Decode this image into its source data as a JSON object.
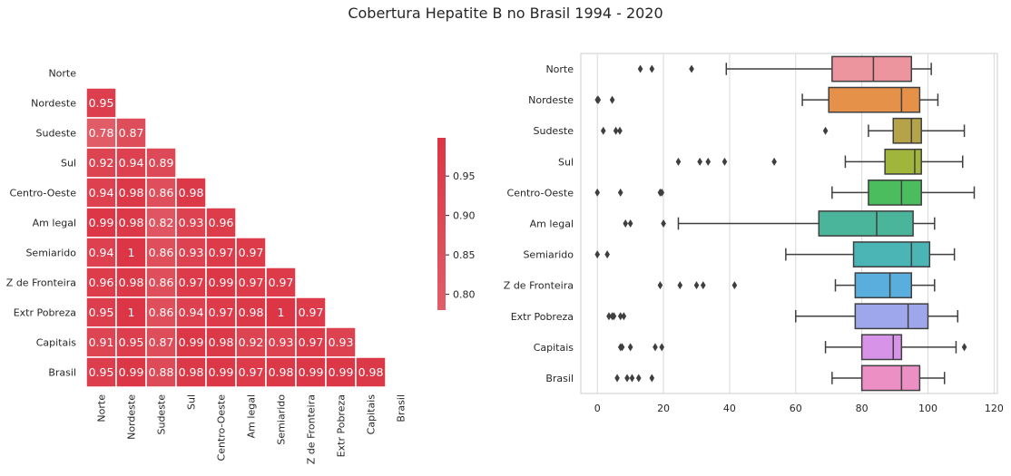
{
  "figure": {
    "title": "Cobertura Hepatite B no Brasil 1994 - 2020"
  },
  "chart_data": [
    {
      "type": "heatmap",
      "subtype": "lower-triangle correlation matrix",
      "labels": [
        "Norte",
        "Nordeste",
        "Sudeste",
        "Sul",
        "Centro-Oeste",
        "Am legal",
        "Semiarido",
        "Z de Fronteira",
        "Extr Pobreza",
        "Capitais",
        "Brasil"
      ],
      "matrix": [
        [],
        [
          0.95
        ],
        [
          0.78,
          0.87
        ],
        [
          0.92,
          0.94,
          0.89
        ],
        [
          0.94,
          0.98,
          0.86,
          0.98
        ],
        [
          0.99,
          0.98,
          0.82,
          0.93,
          0.96
        ],
        [
          0.94,
          1,
          0.86,
          0.93,
          0.97,
          0.97
        ],
        [
          0.96,
          0.98,
          0.86,
          0.97,
          0.99,
          0.97,
          0.97
        ],
        [
          0.95,
          1,
          0.86,
          0.94,
          0.97,
          0.98,
          1,
          0.97
        ],
        [
          0.91,
          0.95,
          0.87,
          0.99,
          0.98,
          0.92,
          0.93,
          0.97,
          0.93
        ],
        [
          0.95,
          0.99,
          0.88,
          0.98,
          0.99,
          0.97,
          0.98,
          0.99,
          0.99,
          0.98
        ]
      ],
      "colorbar": {
        "min": 0.78,
        "max": 1.0,
        "ticks": [
          "0.80",
          "0.85",
          "0.90",
          "0.95"
        ],
        "color_low": "#e05d68",
        "color_high": "#dc3545"
      }
    },
    {
      "type": "box",
      "orientation": "horizontal",
      "categories": [
        "Norte",
        "Nordeste",
        "Sudeste",
        "Sul",
        "Centro-Oeste",
        "Am legal",
        "Semiarido",
        "Z de Fronteira",
        "Extr Pobreza",
        "Capitais",
        "Brasil"
      ],
      "xlim": [
        -5,
        121
      ],
      "xticks": [
        0,
        20,
        40,
        60,
        80,
        100,
        120
      ],
      "grid": "vertical",
      "boxes": [
        {
          "color": "#ec959e",
          "wmin": 39,
          "q1": 71,
          "med": 83.5,
          "q3": 95,
          "wmax": 101,
          "outliers": [
            13,
            16.5,
            28.5
          ]
        },
        {
          "color": "#e6914a",
          "wmin": 62,
          "q1": 70,
          "med": 92,
          "q3": 97.5,
          "wmax": 103,
          "outliers": [
            0,
            0.3,
            4.5
          ]
        },
        {
          "color": "#b5a34a",
          "wmin": 82,
          "q1": 89.5,
          "med": 95,
          "q3": 98,
          "wmax": 111,
          "outliers": [
            1.8,
            5.6,
            6.8,
            69
          ]
        },
        {
          "color": "#9fb53c",
          "wmin": 75,
          "q1": 87,
          "med": 96,
          "q3": 98,
          "wmax": 110.5,
          "outliers": [
            24.5,
            31,
            33.5,
            38.5,
            53.5
          ]
        },
        {
          "color": "#4bbd5f",
          "wmin": 71,
          "q1": 82,
          "med": 92,
          "q3": 98,
          "wmax": 114,
          "outliers": [
            0,
            7,
            19,
            19.5
          ]
        },
        {
          "color": "#4bb59c",
          "wmin": 24.5,
          "q1": 67,
          "med": 84.5,
          "q3": 95.5,
          "wmax": 102,
          "outliers": [
            8.5,
            10,
            20
          ]
        },
        {
          "color": "#4bb5b5",
          "wmin": 57,
          "q1": 77.5,
          "med": 95,
          "q3": 100.5,
          "wmax": 108,
          "outliers": [
            0,
            3
          ]
        },
        {
          "color": "#5aaede",
          "wmin": 72,
          "q1": 78,
          "med": 88.5,
          "q3": 95,
          "wmax": 102,
          "outliers": [
            19,
            25,
            30,
            32,
            41.5
          ]
        },
        {
          "color": "#9ea7eb",
          "wmin": 60,
          "q1": 78,
          "med": 94,
          "q3": 100,
          "wmax": 109,
          "outliers": [
            3.5,
            4.5,
            5,
            7,
            8
          ]
        },
        {
          "color": "#d793e8",
          "wmin": 69,
          "q1": 80,
          "med": 89.5,
          "q3": 92,
          "wmax": 108.5,
          "outliers": [
            7,
            7.5,
            10,
            17.5,
            19.5,
            111
          ]
        },
        {
          "color": "#ec8fc4",
          "wmin": 71,
          "q1": 80,
          "med": 92,
          "q3": 97.5,
          "wmax": 105,
          "outliers": [
            6,
            9,
            10.5,
            12.5,
            16.5
          ]
        }
      ]
    }
  ]
}
